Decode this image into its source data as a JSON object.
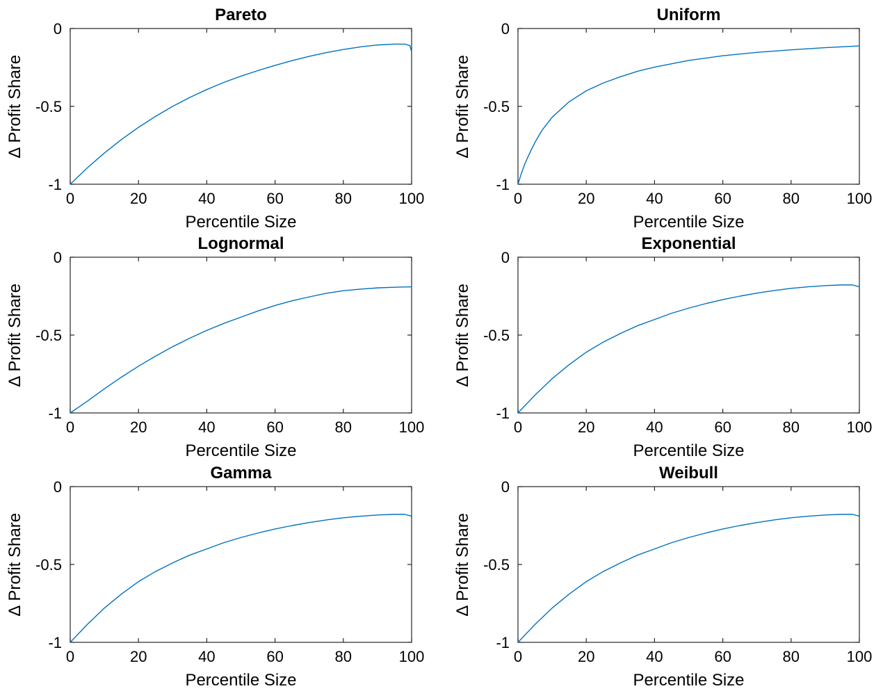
{
  "figure": {
    "line_color": "#0072bd"
  },
  "chart_data": [
    {
      "type": "line",
      "title": "Pareto",
      "xlabel": "Percentile Size",
      "ylabel": "∆ Profit Share",
      "xlim": [
        0,
        100
      ],
      "ylim": [
        -1,
        0
      ],
      "xticks": [
        0,
        20,
        40,
        60,
        80,
        100
      ],
      "yticks": [
        -1,
        -0.5,
        0
      ],
      "ytick_labels": [
        "-1",
        "-0.5",
        "0"
      ],
      "grid": false,
      "series": [
        {
          "x": [
            0,
            5,
            10,
            15,
            20,
            25,
            30,
            35,
            40,
            45,
            50,
            55,
            60,
            65,
            70,
            75,
            80,
            85,
            90,
            95,
            98,
            99.5,
            100
          ],
          "y": [
            -1.0,
            -0.895,
            -0.8,
            -0.713,
            -0.635,
            -0.564,
            -0.5,
            -0.443,
            -0.392,
            -0.346,
            -0.306,
            -0.27,
            -0.237,
            -0.206,
            -0.179,
            -0.155,
            -0.135,
            -0.118,
            -0.106,
            -0.1,
            -0.1,
            -0.11,
            -0.15
          ]
        }
      ]
    },
    {
      "type": "line",
      "title": "Uniform",
      "xlabel": "Percentile Size",
      "ylabel": "∆ Profit Share",
      "xlim": [
        0,
        100
      ],
      "ylim": [
        -1,
        0
      ],
      "xticks": [
        0,
        20,
        40,
        60,
        80,
        100
      ],
      "yticks": [
        -1,
        -0.5,
        0
      ],
      "ytick_labels": [
        "-1",
        "-0.5",
        "0"
      ],
      "grid": false,
      "series": [
        {
          "x": [
            0,
            1,
            2,
            3,
            5,
            7,
            10,
            15,
            20,
            25,
            30,
            35,
            40,
            50,
            60,
            70,
            80,
            90,
            100
          ],
          "y": [
            -1.0,
            -0.93,
            -0.87,
            -0.82,
            -0.73,
            -0.655,
            -0.57,
            -0.47,
            -0.4,
            -0.35,
            -0.31,
            -0.275,
            -0.248,
            -0.205,
            -0.175,
            -0.153,
            -0.137,
            -0.123,
            -0.112
          ]
        }
      ]
    },
    {
      "type": "line",
      "title": "Lognormal",
      "xlabel": "Percentile Size",
      "ylabel": "∆ Profit Share",
      "xlim": [
        0,
        100
      ],
      "ylim": [
        -1,
        0
      ],
      "xticks": [
        0,
        20,
        40,
        60,
        80,
        100
      ],
      "yticks": [
        -1,
        -0.5,
        0
      ],
      "ytick_labels": [
        "-1",
        "-0.5",
        "0"
      ],
      "grid": false,
      "series": [
        {
          "x": [
            0,
            5,
            10,
            15,
            20,
            25,
            30,
            35,
            40,
            45,
            50,
            55,
            60,
            65,
            70,
            75,
            80,
            85,
            90,
            95,
            100
          ],
          "y": [
            -1.0,
            -0.925,
            -0.845,
            -0.77,
            -0.7,
            -0.635,
            -0.575,
            -0.52,
            -0.47,
            -0.425,
            -0.385,
            -0.345,
            -0.31,
            -0.28,
            -0.255,
            -0.232,
            -0.215,
            -0.205,
            -0.197,
            -0.193,
            -0.19
          ]
        }
      ]
    },
    {
      "type": "line",
      "title": "Exponential",
      "xlabel": "Percentile Size",
      "ylabel": "∆ Profit Share",
      "xlim": [
        0,
        100
      ],
      "ylim": [
        -1,
        0
      ],
      "xticks": [
        0,
        20,
        40,
        60,
        80,
        100
      ],
      "yticks": [
        -1,
        -0.5,
        0
      ],
      "ytick_labels": [
        "-1",
        "-0.5",
        "0"
      ],
      "grid": false,
      "series": [
        {
          "x": [
            0,
            5,
            10,
            15,
            20,
            25,
            30,
            35,
            40,
            45,
            50,
            55,
            60,
            65,
            70,
            75,
            80,
            85,
            90,
            95,
            98,
            100
          ],
          "y": [
            -1.0,
            -0.885,
            -0.78,
            -0.69,
            -0.61,
            -0.545,
            -0.49,
            -0.44,
            -0.4,
            -0.36,
            -0.327,
            -0.298,
            -0.272,
            -0.25,
            -0.231,
            -0.214,
            -0.2,
            -0.19,
            -0.182,
            -0.178,
            -0.178,
            -0.19
          ]
        }
      ]
    },
    {
      "type": "line",
      "title": "Gamma",
      "xlabel": "Percentile Size",
      "ylabel": "∆ Profit Share",
      "xlim": [
        0,
        100
      ],
      "ylim": [
        -1,
        0
      ],
      "xticks": [
        0,
        20,
        40,
        60,
        80,
        100
      ],
      "yticks": [
        -1,
        -0.5,
        0
      ],
      "ytick_labels": [
        "-1",
        "-0.5",
        "0"
      ],
      "grid": false,
      "series": [
        {
          "x": [
            0,
            5,
            10,
            15,
            20,
            25,
            30,
            35,
            40,
            45,
            50,
            55,
            60,
            65,
            70,
            75,
            80,
            85,
            90,
            95,
            98,
            100
          ],
          "y": [
            -1.0,
            -0.885,
            -0.78,
            -0.69,
            -0.61,
            -0.545,
            -0.49,
            -0.44,
            -0.4,
            -0.36,
            -0.327,
            -0.298,
            -0.272,
            -0.25,
            -0.231,
            -0.214,
            -0.2,
            -0.19,
            -0.182,
            -0.178,
            -0.178,
            -0.19
          ]
        }
      ]
    },
    {
      "type": "line",
      "title": "Weibull",
      "xlabel": "Percentile Size",
      "ylabel": "∆ Profit Share",
      "xlim": [
        0,
        100
      ],
      "ylim": [
        -1,
        0
      ],
      "xticks": [
        0,
        20,
        40,
        60,
        80,
        100
      ],
      "yticks": [
        -1,
        -0.5,
        0
      ],
      "ytick_labels": [
        "-1",
        "-0.5",
        "0"
      ],
      "grid": false,
      "series": [
        {
          "x": [
            0,
            5,
            10,
            15,
            20,
            25,
            30,
            35,
            40,
            45,
            50,
            55,
            60,
            65,
            70,
            75,
            80,
            85,
            90,
            95,
            98,
            100
          ],
          "y": [
            -1.0,
            -0.885,
            -0.78,
            -0.69,
            -0.61,
            -0.545,
            -0.49,
            -0.44,
            -0.4,
            -0.36,
            -0.327,
            -0.298,
            -0.272,
            -0.25,
            -0.231,
            -0.214,
            -0.2,
            -0.19,
            -0.182,
            -0.178,
            -0.178,
            -0.19
          ]
        }
      ]
    }
  ]
}
